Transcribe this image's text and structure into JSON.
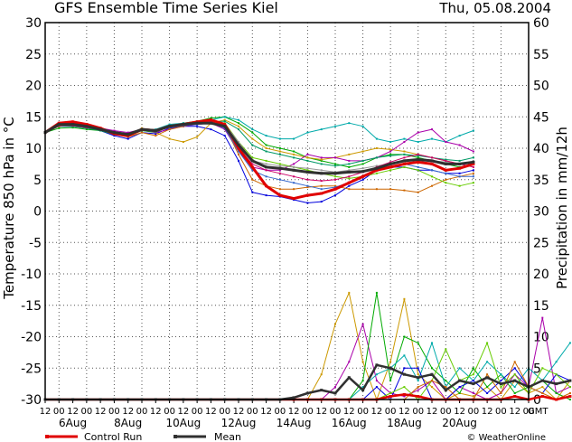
{
  "chart_data": {
    "type": "line",
    "title": "GFS Ensemble Time Series Kiel",
    "date": "Thu, 05.08.2004",
    "ylabel_left": "Temperature 850 hPa in °C",
    "ylabel_right": "Precipitation in mm/12h",
    "ylim_left": [
      -30,
      30
    ],
    "ylim_right": [
      0,
      60
    ],
    "yticks_left": [
      "30",
      "25",
      "20",
      "15",
      "10",
      "5",
      "0",
      "-5",
      "-10",
      "-15",
      "-20",
      "-25",
      "-30"
    ],
    "yticks_right": [
      "60",
      "55",
      "50",
      "45",
      "40",
      "35",
      "30",
      "25",
      "20",
      "15",
      "10",
      "5",
      "0"
    ],
    "x_hours": [
      "12",
      "00",
      "12",
      "00",
      "12",
      "00",
      "12",
      "00",
      "12",
      "00",
      "12",
      "00",
      "12",
      "00",
      "12",
      "00",
      "12",
      "00",
      "12",
      "00",
      "12",
      "00",
      "12",
      "00",
      "12",
      "00",
      "12",
      "00",
      "12",
      "00",
      "12",
      "00",
      "12",
      "00",
      "12",
      "00"
    ],
    "x_days": [
      "6Aug",
      "8Aug",
      "10Aug",
      "12Aug",
      "14Aug",
      "16Aug",
      "18Aug",
      "20Aug"
    ],
    "x_unit": "GMT",
    "grid": true,
    "legend_placement": "bottom-left",
    "legend": [
      {
        "label": "Control Run",
        "color": "#e00000"
      },
      {
        "label": "Mean",
        "color": "#303030"
      }
    ],
    "credit": "© WeatherOnline",
    "temperature": {
      "control": [
        12.5,
        14.0,
        14.2,
        13.8,
        13.2,
        12.3,
        12.0,
        13.0,
        12.8,
        13.5,
        13.8,
        14.2,
        14.5,
        13.8,
        10.0,
        7.0,
        4.0,
        2.5,
        2.0,
        2.5,
        2.8,
        3.5,
        4.5,
        5.5,
        6.5,
        7.0,
        7.5,
        7.8,
        7.5,
        6.5,
        6.8,
        7.5
      ],
      "mean": [
        12.5,
        13.8,
        13.8,
        13.5,
        13.0,
        12.5,
        12.2,
        13.0,
        12.8,
        13.5,
        13.8,
        14.0,
        14.0,
        13.5,
        10.5,
        8.0,
        7.0,
        6.8,
        6.5,
        6.2,
        6.0,
        6.0,
        6.2,
        6.3,
        6.8,
        7.5,
        8.0,
        8.2,
        8.0,
        7.5,
        7.5,
        7.8
      ],
      "members": [
        {
          "color": "#0000dd",
          "values": [
            12.5,
            13.5,
            13.5,
            13.2,
            12.8,
            12.0,
            11.5,
            12.5,
            12.3,
            13.2,
            13.5,
            13.5,
            13.0,
            12.0,
            8.0,
            3.0,
            2.5,
            2.3,
            1.8,
            1.3,
            1.5,
            2.5,
            4.0,
            5.0,
            6.5,
            7.0,
            7.0,
            6.5,
            6.5,
            6.0,
            6.0,
            6.5
          ]
        },
        {
          "color": "#00aa00",
          "values": [
            12.5,
            13.2,
            13.3,
            13.0,
            12.8,
            12.2,
            12.0,
            12.8,
            12.5,
            13.5,
            14.0,
            14.3,
            14.8,
            15.0,
            14.0,
            12.5,
            10.5,
            10.0,
            9.5,
            8.5,
            8.0,
            7.5,
            7.0,
            7.5,
            8.5,
            9.0,
            9.0,
            8.5,
            8.0,
            7.5,
            7.0,
            7.5
          ]
        },
        {
          "color": "#cc9900",
          "values": [
            12.5,
            13.8,
            14.0,
            13.7,
            13.2,
            12.3,
            12.0,
            13.2,
            12.5,
            11.5,
            11.0,
            11.8,
            14.0,
            14.5,
            13.5,
            11.5,
            10.0,
            9.5,
            9.0,
            8.5,
            8.2,
            8.5,
            9.0,
            9.5,
            10.0,
            9.8,
            9.5,
            9.0,
            8.5,
            8.0,
            7.5,
            7.8
          ]
        },
        {
          "color": "#00aaaa",
          "values": [
            12.5,
            13.5,
            13.5,
            13.3,
            13.0,
            12.5,
            12.2,
            13.0,
            13.0,
            13.8,
            14.0,
            14.2,
            14.5,
            15.0,
            14.5,
            13.0,
            12.0,
            11.5,
            11.5,
            12.5,
            13.0,
            13.5,
            14.0,
            13.5,
            11.5,
            11.0,
            11.5,
            11.0,
            11.5,
            11.0,
            12.0,
            12.8
          ]
        },
        {
          "color": "#aa00aa",
          "values": [
            12.5,
            13.8,
            13.8,
            13.5,
            13.2,
            12.8,
            12.5,
            13.0,
            12.5,
            13.0,
            13.5,
            13.8,
            14.0,
            13.0,
            9.5,
            7.0,
            6.5,
            6.5,
            7.5,
            9.0,
            8.5,
            8.5,
            8.0,
            8.0,
            8.5,
            9.5,
            11.0,
            12.5,
            13.0,
            11.0,
            10.5,
            9.5
          ]
        },
        {
          "color": "#cc6600",
          "values": [
            12.5,
            13.5,
            13.8,
            13.5,
            13.0,
            12.2,
            11.8,
            12.5,
            12.0,
            13.0,
            13.5,
            14.0,
            14.2,
            13.5,
            9.0,
            5.0,
            4.0,
            3.5,
            3.5,
            3.8,
            4.0,
            4.0,
            3.5,
            3.5,
            3.5,
            3.5,
            3.3,
            3.0,
            4.0,
            5.0,
            5.5,
            6.0
          ]
        },
        {
          "color": "#66cc00",
          "values": [
            12.5,
            13.7,
            13.6,
            13.3,
            13.0,
            12.4,
            12.0,
            12.8,
            12.8,
            13.5,
            13.8,
            14.0,
            14.3,
            14.0,
            11.0,
            8.5,
            8.0,
            7.5,
            7.0,
            6.5,
            6.0,
            5.5,
            5.2,
            5.5,
            6.0,
            6.5,
            7.0,
            6.5,
            5.5,
            4.5,
            4.0,
            4.5
          ]
        },
        {
          "color": "#3366cc",
          "values": [
            12.5,
            13.6,
            13.7,
            13.4,
            12.9,
            12.3,
            12.0,
            12.9,
            12.7,
            13.3,
            13.6,
            13.8,
            14.0,
            13.2,
            9.5,
            6.5,
            5.5,
            5.0,
            4.5,
            4.0,
            3.5,
            3.8,
            4.5,
            5.5,
            6.5,
            7.0,
            7.5,
            7.0,
            6.5,
            6.0,
            5.5,
            5.5
          ]
        },
        {
          "color": "#009966",
          "values": [
            12.5,
            13.6,
            13.5,
            13.2,
            12.8,
            12.2,
            11.9,
            12.8,
            12.6,
            13.4,
            13.7,
            13.9,
            14.2,
            14.3,
            13.0,
            10.5,
            9.5,
            9.0,
            8.5,
            8.0,
            7.5,
            7.2,
            7.5,
            8.0,
            8.5,
            8.8,
            9.0,
            8.8,
            8.5,
            8.2,
            8.0,
            8.5
          ]
        },
        {
          "color": "#999999",
          "values": [
            12.5,
            13.7,
            13.7,
            13.4,
            13.0,
            12.5,
            12.2,
            13.0,
            12.8,
            13.6,
            13.9,
            14.1,
            14.4,
            13.8,
            11.0,
            8.0,
            7.5,
            7.2,
            7.0,
            6.8,
            6.5,
            6.2,
            6.5,
            6.8,
            7.2,
            7.5,
            8.0,
            8.2,
            8.0,
            7.8,
            7.5,
            7.8
          ]
        },
        {
          "color": "#cc0066",
          "values": [
            12.5,
            13.6,
            13.6,
            13.3,
            13.0,
            12.4,
            12.1,
            12.9,
            12.7,
            13.4,
            13.7,
            14.0,
            14.2,
            13.4,
            10.0,
            7.5,
            6.5,
            6.0,
            5.5,
            5.0,
            4.8,
            5.0,
            5.5,
            6.2,
            7.0,
            7.8,
            8.5,
            9.0,
            8.5,
            8.0,
            7.5,
            7.0
          ]
        }
      ]
    },
    "precipitation": {
      "mean": [
        0,
        0,
        0,
        0,
        0,
        0,
        0,
        0,
        0,
        0,
        0,
        0,
        0,
        0,
        0,
        0,
        0,
        0,
        0.3,
        1.0,
        1.5,
        1.0,
        3.5,
        1.5,
        5.5,
        5.0,
        4.0,
        3.5,
        4.0,
        1.5,
        3.0,
        2.5,
        3.5,
        2.5,
        3.0,
        2.0,
        3.0,
        2.5,
        3.0
      ],
      "control": [
        0,
        0,
        0,
        0,
        0,
        0,
        0,
        0,
        0,
        0,
        0,
        0,
        0,
        0,
        0,
        0,
        0,
        0,
        0,
        0,
        0,
        0,
        0,
        0,
        0,
        0.5,
        0.8,
        0.5,
        0,
        0,
        0,
        0,
        0,
        0,
        0.5,
        0,
        0.5,
        0,
        0.5
      ],
      "members": [
        {
          "color": "#cc9900",
          "values": [
            0,
            0,
            0,
            0,
            0,
            0,
            0,
            0,
            0,
            0,
            0,
            0,
            0,
            0,
            0,
            0,
            0,
            0,
            0,
            0,
            4.0,
            12.0,
            17.0,
            6.0,
            0,
            6.0,
            16.0,
            4.0,
            2.0,
            0,
            1.0,
            0.5,
            2.0,
            0,
            3.0,
            1.0,
            2.0,
            0,
            3.0
          ]
        },
        {
          "color": "#aa00aa",
          "values": [
            0,
            0,
            0,
            0,
            0,
            0,
            0,
            0,
            0,
            0,
            0,
            0,
            0,
            0,
            0,
            0,
            0,
            0,
            0,
            0,
            0,
            2.0,
            6.0,
            12.0,
            3.0,
            1.0,
            0.5,
            1.5,
            3.0,
            0,
            2.0,
            1.0,
            0,
            1.0,
            4.0,
            2.0,
            13.0,
            1.0,
            2.0
          ]
        },
        {
          "color": "#00aa00",
          "values": [
            0,
            0,
            0,
            0,
            0,
            0,
            0,
            0,
            0,
            0,
            0,
            0,
            0,
            0,
            0,
            0,
            0,
            0,
            0,
            0,
            0,
            0,
            0,
            3.0,
            17.0,
            3.0,
            10.0,
            9.0,
            5.0,
            3.0,
            1.0,
            5.0,
            2.0,
            4.0,
            1.0,
            2.0,
            3.0,
            1.0,
            0
          ]
        },
        {
          "color": "#00aaaa",
          "values": [
            0,
            0,
            0,
            0,
            0,
            0,
            0,
            0,
            0,
            0,
            0,
            0,
            0,
            0,
            0,
            0,
            0,
            0,
            0,
            0,
            0,
            0,
            0,
            2.0,
            4.0,
            5.0,
            7.0,
            3.0,
            9.0,
            2.0,
            5.0,
            3.0,
            6.0,
            4.0,
            2.0,
            5.0,
            3.0,
            6.0,
            9.0
          ]
        },
        {
          "color": "#0000dd",
          "values": [
            0,
            0,
            0,
            0,
            0,
            0,
            0,
            0,
            0,
            0,
            0,
            0,
            0,
            0,
            0,
            0,
            0,
            0,
            0,
            0,
            0,
            0,
            0,
            0,
            2.0,
            0,
            5.0,
            5.0,
            0,
            0,
            2.0,
            3.0,
            1.0,
            3.0,
            5.0,
            2.0,
            1.0,
            4.0,
            3.0
          ]
        },
        {
          "color": "#66cc00",
          "values": [
            0,
            0,
            0,
            0,
            0,
            0,
            0,
            0,
            0,
            0,
            0,
            0,
            0,
            0,
            0,
            0,
            0,
            0,
            0,
            0,
            0,
            0,
            0,
            0,
            0,
            1.0,
            2.0,
            0,
            3.0,
            8.0,
            3.0,
            4.0,
            9.0,
            2.0,
            4.0,
            1.0,
            5.0,
            4.0,
            2.0
          ]
        },
        {
          "color": "#cc6600",
          "values": [
            0,
            0,
            0,
            0,
            0,
            0,
            0,
            0,
            0,
            0,
            0,
            0,
            0,
            0,
            0,
            0,
            0,
            0,
            0,
            0,
            0,
            0,
            0,
            0,
            0,
            0,
            0,
            2.0,
            3.0,
            2.0,
            0,
            0,
            4.0,
            1.0,
            6.0,
            2.0,
            1.0,
            0,
            1.0
          ]
        }
      ]
    }
  }
}
